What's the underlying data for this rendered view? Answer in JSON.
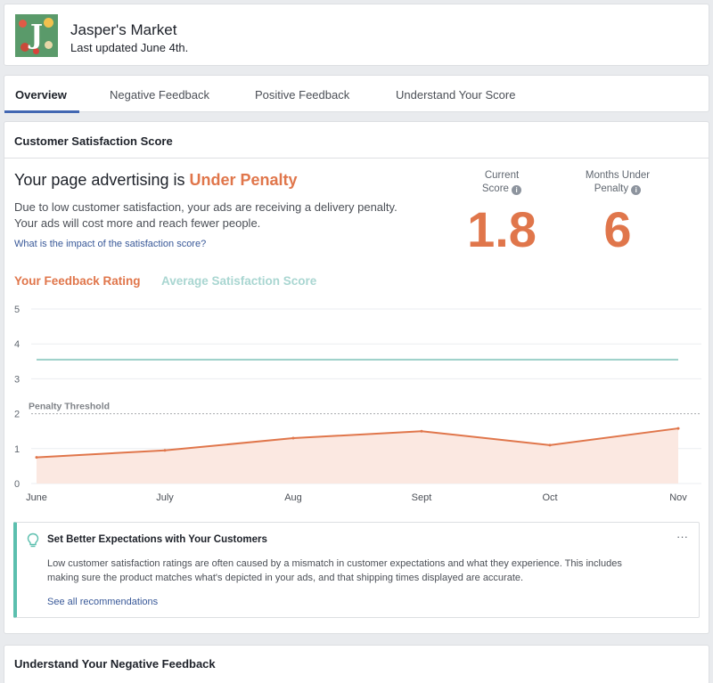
{
  "header": {
    "logo_letter": "J",
    "page_name": "Jasper's Market",
    "last_updated": "Last updated June 4th."
  },
  "tabs": [
    {
      "label": "Overview",
      "active": true
    },
    {
      "label": "Negative Feedback",
      "active": false
    },
    {
      "label": "Positive Feedback",
      "active": false
    },
    {
      "label": "Understand Your Score",
      "active": false
    }
  ],
  "section": {
    "title": "Customer Satisfaction Score",
    "headline_prefix": "Your page advertising is",
    "headline_status": "Under Penalty",
    "desc_line1": "Due to low customer satisfaction, your ads are receiving a delivery penalty.",
    "desc_line2": "Your ads will cost more and reach fewer people.",
    "impact_link": "What is the impact of the satisfaction score?",
    "stats": {
      "current_label_1": "Current",
      "current_label_2": "Score",
      "current_value": "1.8",
      "months_label_1": "Months Under",
      "months_label_2": "Penalty",
      "months_value": "6",
      "info_glyph": "i"
    }
  },
  "colors": {
    "accent_orange": "#e0764b",
    "avg_teal": "#a9d6d1",
    "tab_underline": "#4267b2",
    "link_blue": "#385898",
    "tip_border": "#5bbfae"
  },
  "chart_data": {
    "type": "area",
    "legend": [
      "Your Feedback Rating",
      "Average Satisfaction Score"
    ],
    "categories": [
      "June",
      "July",
      "Aug",
      "Sept",
      "Oct",
      "Nov"
    ],
    "series": [
      {
        "name": "Your Feedback Rating",
        "values": [
          0.75,
          0.95,
          1.3,
          1.5,
          1.1,
          1.58
        ]
      },
      {
        "name": "Average Satisfaction Score",
        "values": [
          3.55,
          3.55,
          3.55,
          3.55,
          3.55,
          3.55
        ]
      }
    ],
    "threshold": {
      "label": "Penalty Threshold",
      "value": 2
    },
    "y_ticks": [
      "0",
      "1",
      "2",
      "3",
      "4",
      "5"
    ],
    "ylim": [
      0,
      5
    ],
    "grid": true
  },
  "tip": {
    "icon": "lightbulb-icon",
    "title": "Set Better Expectations with Your Customers",
    "more": "···",
    "body_line1": "Low customer satisfaction ratings are often caused by a mismatch in customer expectations and what they experience. This includes",
    "body_line2": "making sure the product matches what's depicted in your ads, and that shipping times displayed are accurate.",
    "link": "See all recommendations"
  },
  "bottom": {
    "title": "Understand Your Negative Feedback"
  }
}
